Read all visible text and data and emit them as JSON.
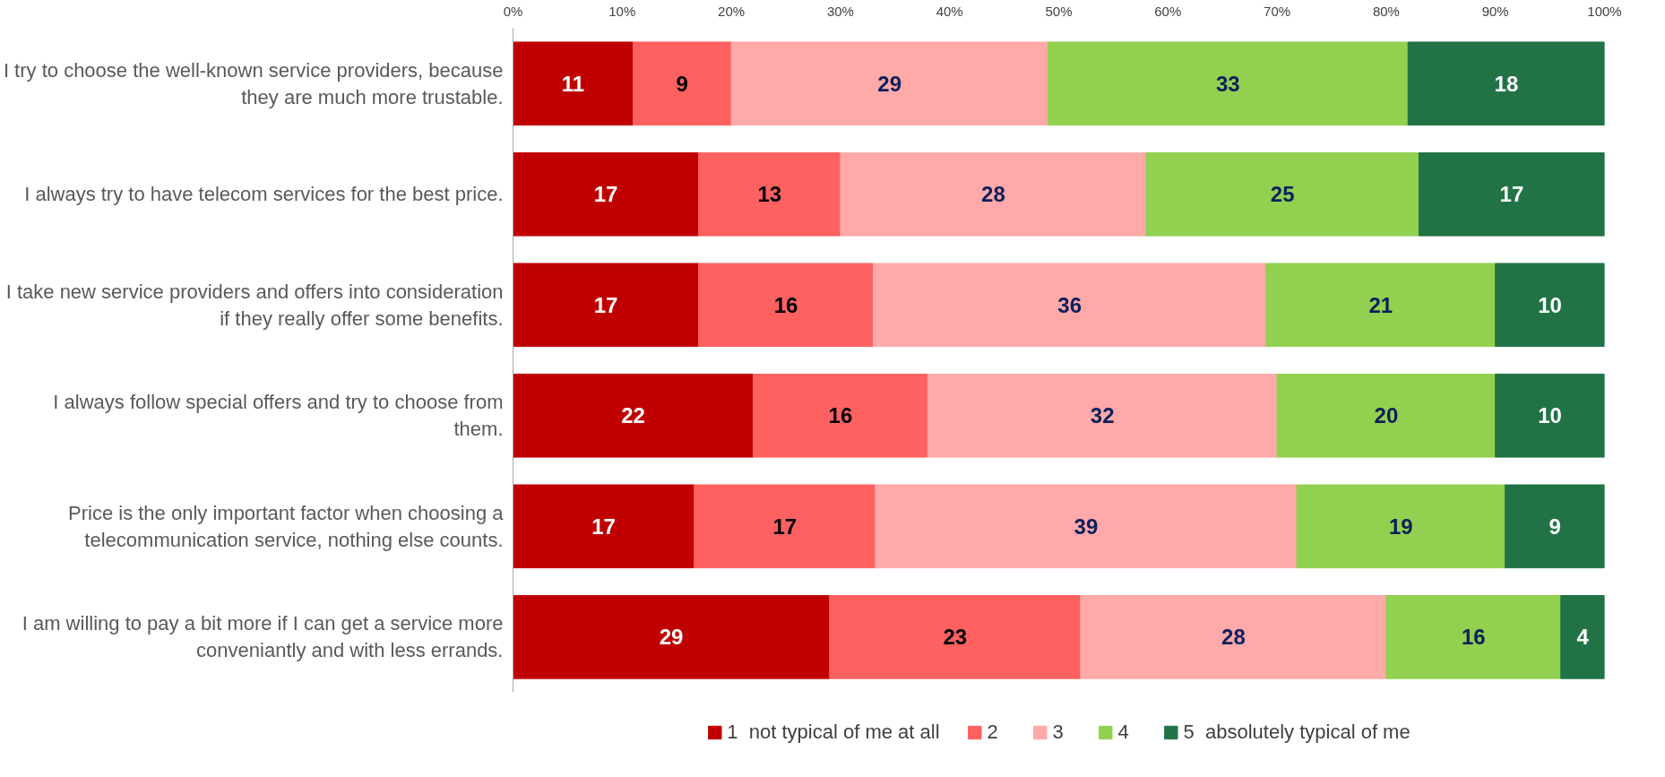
{
  "chart_data": {
    "type": "bar",
    "orientation": "horizontal",
    "stacked": true,
    "categories": [
      "I try to choose the well-known service providers, because they are much more trustable.",
      "I always try to have telecom services for the best price.",
      "I take new service providers and offers into consideration if they really offer some benefits.",
      "I always follow special offers and try to choose from them.",
      "Price is the only important factor when choosing a telecommunication service, nothing else counts.",
      "I am willing to pay a bit more if I can get a service more conveniantly and with less errands."
    ],
    "series": [
      {
        "name": "1  not typical of me at all",
        "color": "#c00000",
        "values": [
          11,
          17,
          17,
          22,
          16.6,
          29
        ],
        "value_labels": [
          "11",
          "17",
          "17",
          "22",
          "17",
          "29"
        ]
      },
      {
        "name": "2",
        "color": "#ff6161",
        "values": [
          9,
          13,
          16,
          16,
          16.6,
          23
        ],
        "value_labels": [
          "9",
          "13",
          "16",
          "16",
          "17",
          "23"
        ]
      },
      {
        "name": "3",
        "color": "#ffa9a9",
        "values": [
          29,
          28,
          36,
          32,
          38.6,
          28
        ],
        "value_labels": [
          "29",
          "28",
          "36",
          "32",
          "39",
          "28"
        ]
      },
      {
        "name": "4",
        "color": "#92d050",
        "values": [
          33,
          25,
          21,
          20,
          19.1,
          16
        ],
        "value_labels": [
          "33",
          "25",
          "21",
          "20",
          "19",
          "16"
        ]
      },
      {
        "name": "5  absolutely typical of me",
        "color": "#217346",
        "values": [
          18,
          17,
          10,
          10,
          9.1,
          4
        ],
        "value_labels": [
          "18",
          "17",
          "10",
          "10",
          "9",
          "4"
        ]
      }
    ],
    "xlim": [
      0,
      100
    ],
    "xticks": [
      {
        "value": 0,
        "label": "0%"
      },
      {
        "value": 10,
        "label": "10%"
      },
      {
        "value": 20,
        "label": "20%"
      },
      {
        "value": 30,
        "label": "30%"
      },
      {
        "value": 40,
        "label": "40%"
      },
      {
        "value": 50,
        "label": "50%"
      },
      {
        "value": 60,
        "label": "60%"
      },
      {
        "value": 70,
        "label": "70%"
      },
      {
        "value": 80,
        "label": "80%"
      },
      {
        "value": 90,
        "label": "90%"
      },
      {
        "value": 100,
        "label": "100%"
      }
    ],
    "grid": false,
    "legend": "bottom"
  }
}
